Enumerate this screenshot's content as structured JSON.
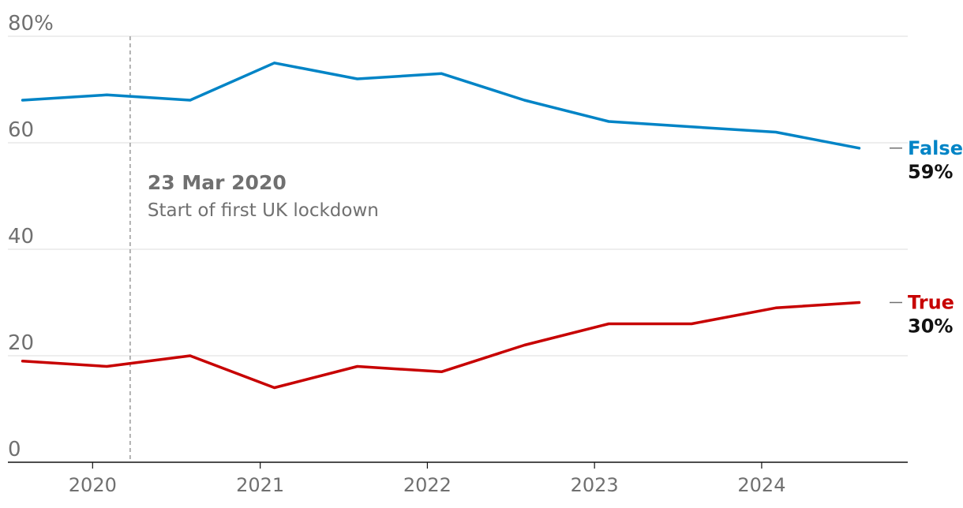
{
  "chart_data": {
    "type": "line",
    "title": "",
    "xlabel": "",
    "ylabel": "",
    "ylim": [
      0,
      80
    ],
    "y_ticks": [
      {
        "value": 0,
        "label": "0"
      },
      {
        "value": 20,
        "label": "20"
      },
      {
        "value": 40,
        "label": "40"
      },
      {
        "value": 60,
        "label": "60"
      },
      {
        "value": 80,
        "label": "80%"
      }
    ],
    "x_ticks": [
      {
        "value": "2020-01-01",
        "label": "2020"
      },
      {
        "value": "2021-01-01",
        "label": "2021"
      },
      {
        "value": "2022-01-01",
        "label": "2022"
      },
      {
        "value": "2023-01-01",
        "label": "2023"
      },
      {
        "value": "2024-01-01",
        "label": "2024"
      }
    ],
    "xlim": [
      "2019-06-30",
      "2024-11-15"
    ],
    "grid": true,
    "annotation": {
      "date": "2020-03-23",
      "title": "23 Mar 2020",
      "text": "Start of first UK lockdown"
    },
    "x": [
      "2019-08-01",
      "2020-02-01",
      "2020-08-01",
      "2021-02-01",
      "2021-08-01",
      "2022-02-01",
      "2022-08-01",
      "2023-02-01",
      "2023-08-01",
      "2024-02-01",
      "2024-08-01"
    ],
    "series": [
      {
        "name": "False",
        "end_label": "59%",
        "color": "#0084c6",
        "values": [
          68,
          69,
          68,
          75,
          72,
          73,
          68,
          64,
          63,
          62,
          59
        ]
      },
      {
        "name": "True",
        "end_label": "30%",
        "color": "#c70000",
        "values": [
          19,
          18,
          20,
          14,
          18,
          17,
          22,
          26,
          26,
          29,
          30
        ]
      }
    ]
  }
}
